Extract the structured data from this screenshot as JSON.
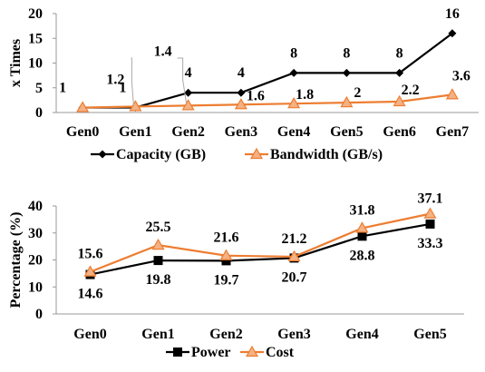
{
  "chart_data": [
    {
      "type": "line",
      "ylabel": "x Times",
      "xlabel": "",
      "ylim": [
        0,
        20
      ],
      "yticks": [
        0,
        5,
        10,
        15,
        20
      ],
      "categories": [
        "Gen0",
        "Gen1",
        "Gen2",
        "Gen3",
        "Gen4",
        "Gen5",
        "Gen6",
        "Gen7"
      ],
      "grid": false,
      "legend_position": "bottom",
      "series": [
        {
          "name": "Capacity (GB)",
          "values": [
            1,
            1,
            4,
            4,
            8,
            8,
            8,
            16
          ],
          "labels": [
            "1",
            "1",
            "4",
            "4",
            "8",
            "8",
            "8",
            "16"
          ],
          "color": "#000000",
          "marker": "diamond"
        },
        {
          "name": "Bandwidth (GB/s)",
          "values": [
            1,
            1.2,
            1.4,
            1.6,
            1.8,
            2,
            2.2,
            3.6
          ],
          "labels": [
            "",
            "1.2",
            "1.4",
            "1.6",
            "1.8",
            "2",
            "2.2",
            "3.6"
          ],
          "color": "#ED7D31",
          "marker": "triangle"
        }
      ]
    },
    {
      "type": "line",
      "ylabel": "Percentage (%)",
      "xlabel": "",
      "ylim": [
        0,
        40
      ],
      "yticks": [
        0,
        10,
        20,
        30,
        40
      ],
      "categories": [
        "Gen0",
        "Gen1",
        "Gen2",
        "Gen3",
        "Gen4",
        "Gen5"
      ],
      "grid": false,
      "legend_position": "bottom",
      "series": [
        {
          "name": "Power",
          "values": [
            14.6,
            19.8,
            19.7,
            20.7,
            28.8,
            33.3
          ],
          "labels": [
            "14.6",
            "19.8",
            "19.7",
            "20.7",
            "28.8",
            "33.3"
          ],
          "color": "#000000",
          "marker": "square"
        },
        {
          "name": "Cost",
          "values": [
            15.6,
            25.5,
            21.6,
            21.2,
            31.8,
            37.1
          ],
          "labels": [
            "15.6",
            "25.5",
            "21.6",
            "21.2",
            "31.8",
            "37.1"
          ],
          "color": "#ED7D31",
          "marker": "triangle"
        }
      ]
    }
  ]
}
